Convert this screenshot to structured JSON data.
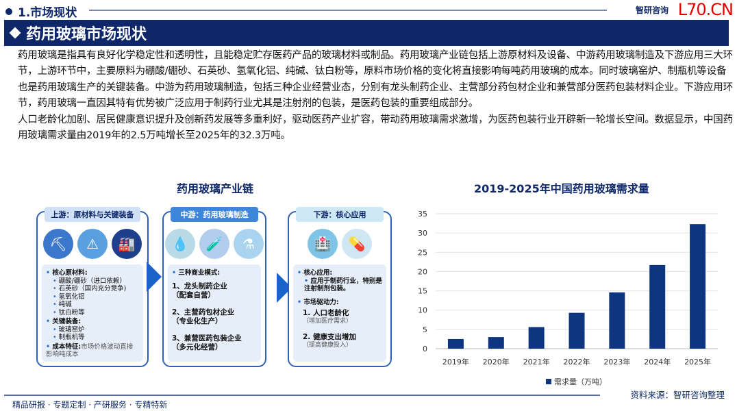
{
  "header": {
    "section": "1.市场现状",
    "logo_text": "智研咨询",
    "logo_url_text": "L70.CN",
    "banner_title": "药用玻璃市场现状"
  },
  "paragraphs": [
    "药用玻璃是指具有良好化学稳定性和透明性，且能稳定贮存医药产品的玻璃材料或制品。药用玻璃产业链包括上游原材料及设备、中游药用玻璃制造及下游应用三大环节，上游环节中，主要原料为硼酸/硼砂、石英砂、氢氧化铝、纯碱、钛白粉等，原料市场价格的变化将直接影响每吨药用玻璃的成本。同时玻璃窑炉、制瓶机等设备也是药用玻璃生产的关键装备。中游为药用玻璃制造，包括三种企业经营业态，分别有龙头制药企业、主营部分药包材企业和兼营部分医药包装材料企业。下游应用环节，药用玻璃一直因其特有优势被广泛应用于制药行业尤其是注射剂的包装，是医药包装的重要组成部分。",
    "人口老龄化加剧、居民健康意识提升及创新药发展等多重利好，驱动医药产业扩容，带动药用玻璃需求激增，为医药包装行业开辟新一轮增长空间。数据显示，中国药用玻璃需求量由2019年的2.5万吨增长至2025年的32.3万吨。"
  ],
  "diagram": {
    "title": "药用玻璃产业链",
    "upstream": {
      "header": "上游：原材料与关键装备",
      "icons": [
        "pickaxe-mine-icon",
        "chemical-barrels-icon",
        "furnace-icon"
      ],
      "h1": "核心原材料:",
      "materials": [
        "硼酸/硼砂（进口依赖）",
        "石英砂（国内充分竞争)",
        "氢氧化铝",
        "纯碱",
        "钛白粉等"
      ],
      "h2": "关键装备:",
      "equipment": [
        "玻璃窑炉",
        "制瓶机等"
      ],
      "h3": "成本特征:",
      "cost": "市场价格波动直接影响吨成本"
    },
    "midstream": {
      "header": "中游：药用玻璃制造",
      "icons": [
        "iv-bag-icon",
        "ampoule-icon",
        "vial-icon"
      ],
      "h1": "三种商业模式:",
      "models": [
        {
          "name": "1、龙头制药企业",
          "sub": "（配套自营）"
        },
        {
          "name": "2、主营药包材企业",
          "sub": "（专业化生产）"
        },
        {
          "name": "3、兼营医药包装企业",
          "sub": "（多元化经营）"
        }
      ]
    },
    "downstream": {
      "header": "下游：核心应用",
      "icons": [
        "hospital-icon",
        "pills-elderly-icon"
      ],
      "h1": "核心应用:",
      "app": "应用于制药行业，特别是注射制剂包装。",
      "h2": "市场驱动力:",
      "drivers": [
        {
          "name": "1. 人口老龄化",
          "sub": "（增加医疗需求）"
        },
        {
          "name": "2. 健康支出增加",
          "sub": "（提高健康投入）"
        }
      ]
    }
  },
  "chart_data": {
    "type": "bar",
    "title": "2019-2025年中国药用玻璃需求量",
    "categories": [
      "2019年",
      "2020年",
      "2021年",
      "2022年",
      "2023年",
      "2024年",
      "2025年"
    ],
    "series": [
      {
        "name": "需求量（万吨）",
        "values": [
          2.5,
          3.0,
          5.6,
          9.3,
          14.6,
          21.7,
          32.3
        ]
      }
    ],
    "ylim": [
      0,
      35
    ],
    "yticks": [
      0,
      5,
      10,
      15,
      20,
      25,
      30,
      35
    ],
    "grid": true,
    "legend": "bottom",
    "color": "#0e3580"
  },
  "footer": {
    "tagline": "精品研报 · 专题定制 · 产研服务 · 专精特新",
    "source": "资料来源：智研咨询整理"
  }
}
